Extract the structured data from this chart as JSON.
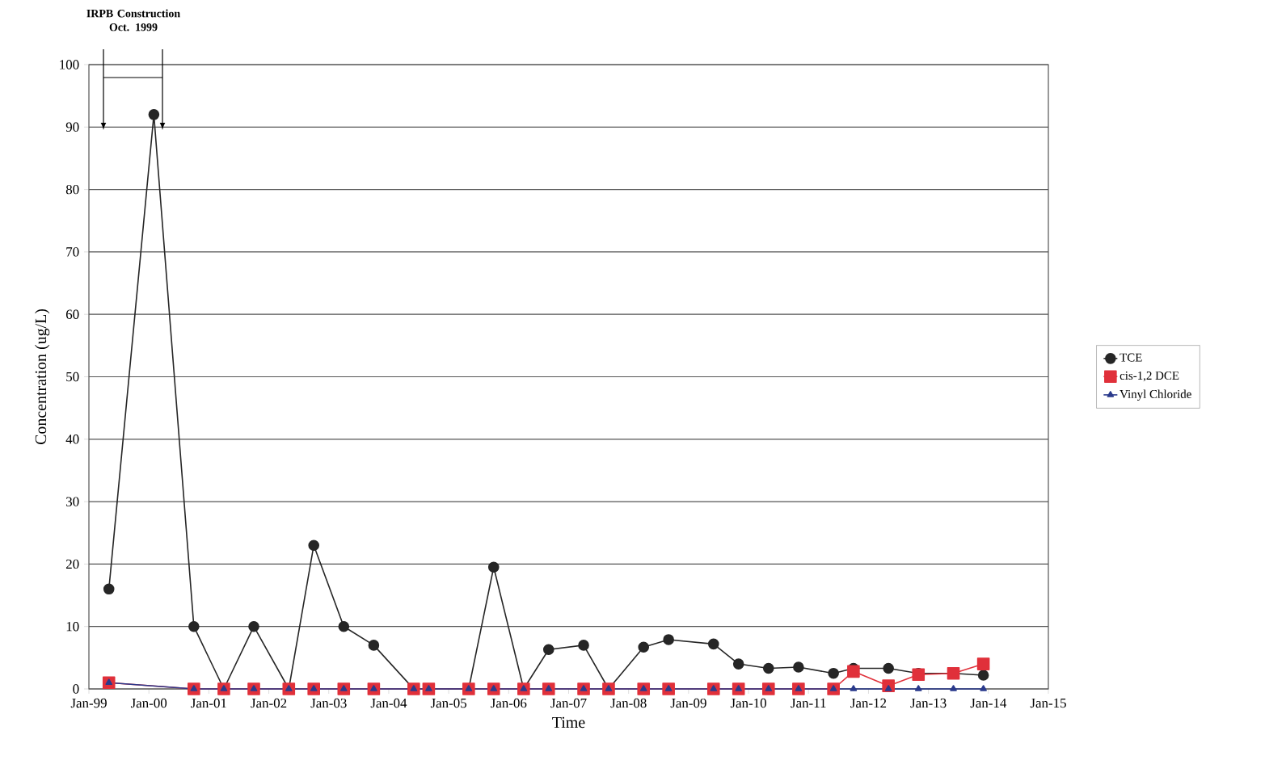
{
  "chart_data": {
    "type": "line",
    "xlabel": "Time",
    "ylabel": "Concentration (ug/L)",
    "annotations": [
      "IRPB Construction Oct. 1999"
    ],
    "x": [
      "1999-05",
      "2000-02",
      "2000-10",
      "2001-04",
      "2001-10",
      "2002-05",
      "2002-10",
      "2003-04",
      "2003-10",
      "2004-06",
      "2004-09",
      "2005-05",
      "2005-10",
      "2006-04",
      "2006-09",
      "2007-04",
      "2007-09",
      "2008-04",
      "2008-09",
      "2009-06",
      "2009-11",
      "2010-05",
      "2010-11",
      "2011-06",
      "2011-10",
      "2012-05",
      "2012-11",
      "2013-06",
      "2013-12"
    ],
    "series": [
      {
        "name": "TCE",
        "color": "#262626",
        "marker": "circle",
        "values": [
          16,
          92,
          10,
          0,
          10,
          0,
          23,
          10,
          7,
          0,
          0,
          0,
          19.5,
          0,
          6.3,
          7,
          0,
          6.7,
          7.9,
          7.2,
          4,
          3.3,
          3.5,
          2.5,
          3.3,
          3.3,
          2.5,
          2.5,
          2.2
        ]
      },
      {
        "name": "cis-1,2 DCE",
        "color": "#e0303a",
        "marker": "square",
        "x": [
          "1999-05",
          "2000-10",
          "2001-04",
          "2001-10",
          "2002-05",
          "2002-10",
          "2003-04",
          "2003-10",
          "2004-06",
          "2004-09",
          "2005-05",
          "2005-10",
          "2006-04",
          "2006-09",
          "2007-04",
          "2007-09",
          "2008-04",
          "2008-09",
          "2009-06",
          "2009-11",
          "2010-05",
          "2010-11",
          "2011-06",
          "2011-10",
          "2012-05",
          "2012-11",
          "2013-06",
          "2013-12"
        ],
        "values": [
          1,
          0,
          0,
          0,
          0,
          0,
          0,
          0,
          0,
          0,
          0,
          0,
          0,
          0,
          0,
          0,
          0,
          0,
          0,
          0,
          0,
          0,
          0,
          2.8,
          0.5,
          2.3,
          2.5,
          4
        ]
      },
      {
        "name": "Vinyl Chloride",
        "color": "#2a3a8c",
        "marker": "triangle",
        "x": [
          "1999-05",
          "2000-10",
          "2001-04",
          "2001-10",
          "2002-05",
          "2002-10",
          "2003-04",
          "2003-10",
          "2004-06",
          "2004-09",
          "2005-05",
          "2005-10",
          "2006-04",
          "2006-09",
          "2007-04",
          "2007-09",
          "2008-04",
          "2008-09",
          "2009-06",
          "2009-11",
          "2010-05",
          "2010-11",
          "2011-06",
          "2011-10",
          "2012-05",
          "2012-11",
          "2013-06",
          "2013-12"
        ],
        "values": [
          1,
          0,
          0,
          0,
          0,
          0,
          0,
          0,
          0,
          0,
          0,
          0,
          0,
          0,
          0,
          0,
          0,
          0,
          0,
          0,
          0,
          0,
          0,
          0,
          0,
          0,
          0,
          0
        ]
      }
    ],
    "xlim": [
      "1999-01",
      "2015-01"
    ],
    "xticks": [
      {
        "value": "1999-01",
        "label": "Jan-99"
      },
      {
        "value": "2000-01",
        "label": "Jan-00"
      },
      {
        "value": "2001-01",
        "label": "Jan-01"
      },
      {
        "value": "2002-01",
        "label": "Jan-02"
      },
      {
        "value": "2003-01",
        "label": "Jan-03"
      },
      {
        "value": "2004-01",
        "label": "Jan-04"
      },
      {
        "value": "2005-01",
        "label": "Jan-05"
      },
      {
        "value": "2006-01",
        "label": "Jan-06"
      },
      {
        "value": "2007-01",
        "label": "Jan-07"
      },
      {
        "value": "2008-01",
        "label": "Jan-08"
      },
      {
        "value": "2009-01",
        "label": "Jan-09"
      },
      {
        "value": "2010-01",
        "label": "Jan-10"
      },
      {
        "value": "2011-01",
        "label": "Jan-11"
      },
      {
        "value": "2012-01",
        "label": "Jan-12"
      },
      {
        "value": "2013-01",
        "label": "Jan-13"
      },
      {
        "value": "2014-01",
        "label": "Jan-14"
      },
      {
        "value": "2015-01",
        "label": "Jan-15"
      }
    ],
    "ylim": [
      0,
      100
    ],
    "yticks": [
      0,
      10,
      20,
      30,
      40,
      50,
      60,
      70,
      80,
      90,
      100
    ],
    "grid": "y",
    "legend": "right",
    "line_style": "solid"
  }
}
